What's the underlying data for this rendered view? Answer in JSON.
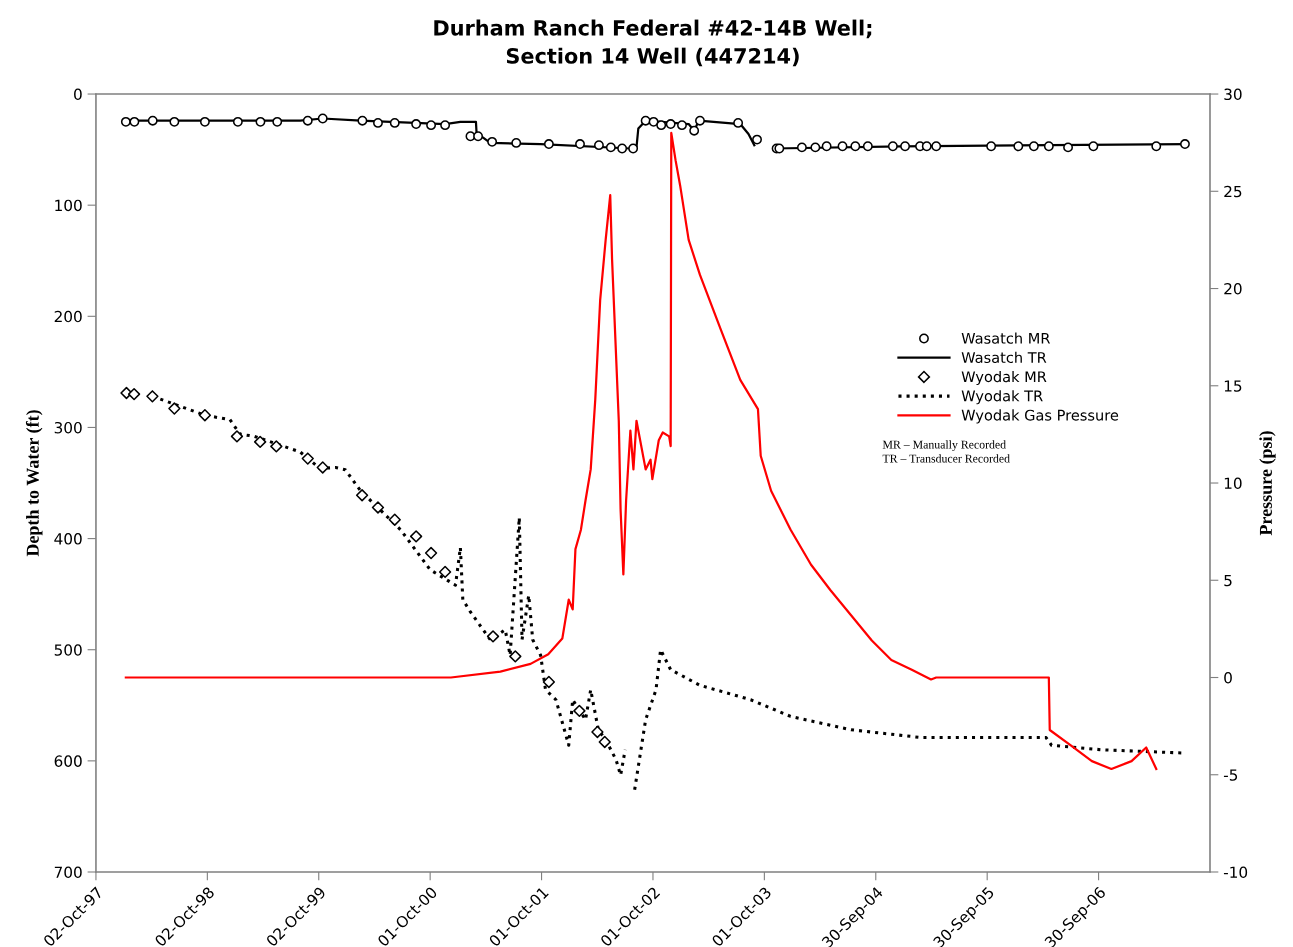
{
  "chart_data": {
    "type": "line",
    "title": "Durham Ranch Federal #42-14B Well;\nSection 14 Well (447214)",
    "ylabel": "Depth to Water (ft)",
    "y2label": "Pressure (psi)",
    "xlim": [
      "1997-10-02",
      "2007-09-30"
    ],
    "xticks": [
      {
        "value": "1997-10-02",
        "label": "02-Oct-97"
      },
      {
        "value": "1998-10-02",
        "label": "02-Oct-98"
      },
      {
        "value": "1999-10-02",
        "label": "02-Oct-99"
      },
      {
        "value": "2000-10-01",
        "label": "01-Oct-00"
      },
      {
        "value": "2001-10-01",
        "label": "01-Oct-01"
      },
      {
        "value": "2002-10-01",
        "label": "01-Oct-02"
      },
      {
        "value": "2003-10-01",
        "label": "01-Oct-03"
      },
      {
        "value": "2004-09-30",
        "label": "30-Sep-04"
      },
      {
        "value": "2005-09-30",
        "label": "30-Sep-05"
      },
      {
        "value": "2006-09-30",
        "label": "30-Sep-06"
      }
    ],
    "ylim": [
      700,
      0
    ],
    "yticks": [
      0,
      100,
      200,
      300,
      400,
      500,
      600,
      700
    ],
    "y2lim": [
      -10,
      30
    ],
    "y2ticks": [
      -10,
      -5,
      0,
      5,
      10,
      15,
      20,
      25,
      30
    ],
    "grid": false,
    "legend": "right",
    "annotations": [
      "MR – Manually Recorded",
      "TR – Transducer Recorded"
    ],
    "series": [
      {
        "name": "Wasatch MR",
        "type": "scatter",
        "marker": "circle",
        "color": "#000000",
        "x": [
          "1998-01-08",
          "1998-02-05",
          "1998-04-06",
          "1998-06-16",
          "1998-09-24",
          "1999-01-10",
          "1999-03-25",
          "1999-05-19",
          "1999-08-27",
          "1999-10-15",
          "2000-02-22",
          "2000-04-13",
          "2000-06-07",
          "2000-08-16",
          "2000-10-04",
          "2000-11-19",
          "2001-02-10",
          "2001-03-07",
          "2001-04-22",
          "2001-07-10",
          "2001-10-25",
          "2002-02-04",
          "2002-04-07",
          "2002-05-16",
          "2002-06-22",
          "2002-07-28",
          "2002-09-07",
          "2002-10-03",
          "2002-10-28",
          "2002-11-28",
          "2003-01-04",
          "2003-02-13",
          "2003-03-04",
          "2003-07-07",
          "2003-09-07",
          "2003-11-10",
          "2003-11-19",
          "2004-02-01",
          "2004-03-16",
          "2004-04-22",
          "2004-06-13",
          "2004-07-25",
          "2004-09-04",
          "2004-11-25",
          "2005-01-04",
          "2005-02-22",
          "2005-03-16",
          "2005-04-16",
          "2005-10-13",
          "2006-01-10",
          "2006-03-02",
          "2006-04-20",
          "2006-06-22",
          "2006-09-13",
          "2007-04-07",
          "2007-07-10"
        ],
        "values": [
          25,
          25,
          24,
          25,
          25,
          25,
          25,
          25,
          24,
          22,
          24,
          26,
          26,
          27,
          28,
          28,
          38,
          38,
          43,
          44,
          45,
          45,
          46,
          48,
          49,
          49,
          24,
          25,
          28,
          27,
          28,
          33,
          24,
          26,
          41,
          49,
          49,
          48,
          48,
          47,
          47,
          47,
          47,
          47,
          47,
          47,
          47,
          47,
          47,
          47,
          47,
          47,
          48,
          47,
          47,
          45
        ]
      },
      {
        "name": "Wasatch TR",
        "marker": "none",
        "line_style": "solid",
        "color": "#000000",
        "x": [
          "1998-01-08",
          "1999-08-02",
          "1999-10-15",
          "2000-02-16",
          "2000-11-19",
          "2001-01-08",
          "2001-02-28",
          "2001-03-02",
          "2001-04-16",
          "2001-09-28",
          "2002-07-19",
          "2002-08-08",
          "2002-08-14",
          "2002-09-07",
          "2003-01-26",
          "2003-02-13",
          "2003-02-28",
          "2003-07-14",
          "2003-08-10",
          "2003-08-29",
          "2003-10-15",
          "2003-11-01",
          "2004-12-22",
          "2007-07-10"
        ],
        "values": [
          24,
          24,
          22,
          24,
          27,
          25,
          25,
          35,
          44,
          45,
          49,
          48,
          31,
          24,
          27,
          33,
          24,
          27,
          36,
          46,
          null,
          49,
          47,
          45
        ]
      },
      {
        "name": "Wyodak MR",
        "type": "scatter",
        "marker": "diamond",
        "color": "#000000",
        "x": [
          "1998-01-10",
          "1998-02-04",
          "1998-04-05",
          "1998-06-16",
          "1998-09-24",
          "1999-01-07",
          "1999-03-24",
          "1999-05-16",
          "1999-08-27",
          "1999-10-15",
          "2000-02-21",
          "2000-04-13",
          "2000-06-07",
          "2000-08-16",
          "2000-10-04",
          "2000-11-19",
          "2001-04-25",
          "2001-07-07",
          "2001-10-25",
          "2002-02-02",
          "2002-04-02",
          "2002-04-26"
        ],
        "values": [
          269,
          270,
          272,
          283,
          289,
          308,
          313,
          317,
          328,
          336,
          361,
          372,
          383,
          398,
          413,
          430,
          488,
          506,
          529,
          555,
          574,
          583
        ]
      },
      {
        "name": "Wyodak TR",
        "marker": "none",
        "line_style": "dotted",
        "color": "#000000",
        "x": [
          "1998-04-06",
          "1998-09-24",
          "1998-12-15",
          "1999-01-17",
          "1999-03-05",
          "1999-08-02",
          "1999-10-06",
          "1999-11-26",
          "1999-12-28",
          "2000-02-16",
          "2000-06-26",
          "2000-10-01",
          "2000-12-23",
          "2001-01-08",
          "2001-01-16",
          "2001-02-10",
          "2001-04-16",
          "2001-06-04",
          "2001-06-20",
          "2001-07-20",
          "2001-07-29",
          "2001-08-20",
          "2001-09-02",
          "2001-09-28",
          "2001-10-14",
          "2001-11-17",
          "2001-12-29",
          "2002-01-11",
          "2002-02-22",
          "2002-03-11",
          "2002-04-05",
          "2002-04-29",
          "2002-06-02",
          "2002-06-17",
          "2002-07-02",
          "2002-07-20",
          "2002-08-02",
          "2002-09-07",
          "2002-10-11",
          "2002-10-26",
          "2002-11-28",
          "2003-03-04",
          "2003-08-17",
          "2003-12-26",
          "2004-07-11",
          "2005-02-25",
          "2006-04-11",
          "2006-04-29",
          "2006-10-09",
          "2007-07-10"
        ],
        "values": [
          272,
          289,
          293,
          306,
          308,
          322,
          337,
          336,
          338,
          357,
          392,
          428,
          442,
          408,
          455,
          466,
          491,
          482,
          505,
          381,
          491,
          451,
          491,
          505,
          536,
          545,
          586,
          545,
          563,
          536,
          572,
          581,
          599,
          613,
          590,
          null,
          626,
          563,
          536,
          500,
          518,
          532,
          545,
          560,
          572,
          579,
          579,
          586,
          590,
          593
        ]
      },
      {
        "name": "Wyodak Gas Pressure",
        "axis": "y2",
        "marker": "none",
        "line_style": "solid",
        "color": "#ff0000",
        "x": [
          "1998-01-08",
          "2000-12-08",
          "2001-05-19",
          "2001-08-26",
          "2001-10-23",
          "2001-12-08",
          "2001-12-29",
          "2002-01-11",
          "2002-01-20",
          "2002-02-07",
          "2002-02-22",
          "2002-03-11",
          "2002-03-26",
          "2002-04-11",
          "2002-04-29",
          "2002-05-14",
          "2002-05-20",
          "2002-06-11",
          "2002-06-17",
          "2002-06-26",
          "2002-07-05",
          "2002-07-19",
          "2002-07-29",
          "2002-08-08",
          "2002-09-07",
          "2002-09-23",
          "2002-09-29",
          "2002-10-20",
          "2002-11-02",
          "2002-11-23",
          "2002-11-28",
          "2002-11-30",
          "2002-12-14",
          "2002-12-29",
          "2003-01-26",
          "2003-03-04",
          "2003-05-11",
          "2003-07-14",
          "2003-09-10",
          "2003-09-19",
          "2003-10-23",
          "2003-12-26",
          "2004-03-02",
          "2004-05-04",
          "2004-07-11",
          "2004-09-17",
          "2004-11-20",
          "2005-01-26",
          "2005-03-30",
          "2005-04-16",
          "2006-04-20",
          "2006-04-23",
          "2006-07-02",
          "2006-09-08",
          "2006-11-11",
          "2007-01-16",
          "2007-03-05",
          "2007-04-07"
        ],
        "values": [
          0.0,
          0.0,
          0.3,
          0.7,
          1.2,
          2.0,
          4.0,
          3.5,
          6.6,
          7.6,
          9.1,
          10.7,
          14.3,
          19.4,
          22.5,
          24.8,
          21.5,
          13.2,
          8.6,
          5.3,
          9.1,
          12.7,
          10.7,
          13.2,
          10.7,
          11.2,
          10.2,
          12.2,
          12.6,
          12.4,
          11.9,
          28.0,
          26.6,
          25.3,
          22.5,
          20.7,
          17.9,
          15.3,
          13.8,
          11.4,
          9.6,
          7.6,
          5.8,
          4.5,
          3.2,
          1.9,
          0.9,
          0.4,
          -0.1,
          0.0,
          0.0,
          -2.7,
          -3.5,
          -4.3,
          -4.7,
          -4.3,
          -3.6,
          -4.7
        ]
      }
    ]
  }
}
